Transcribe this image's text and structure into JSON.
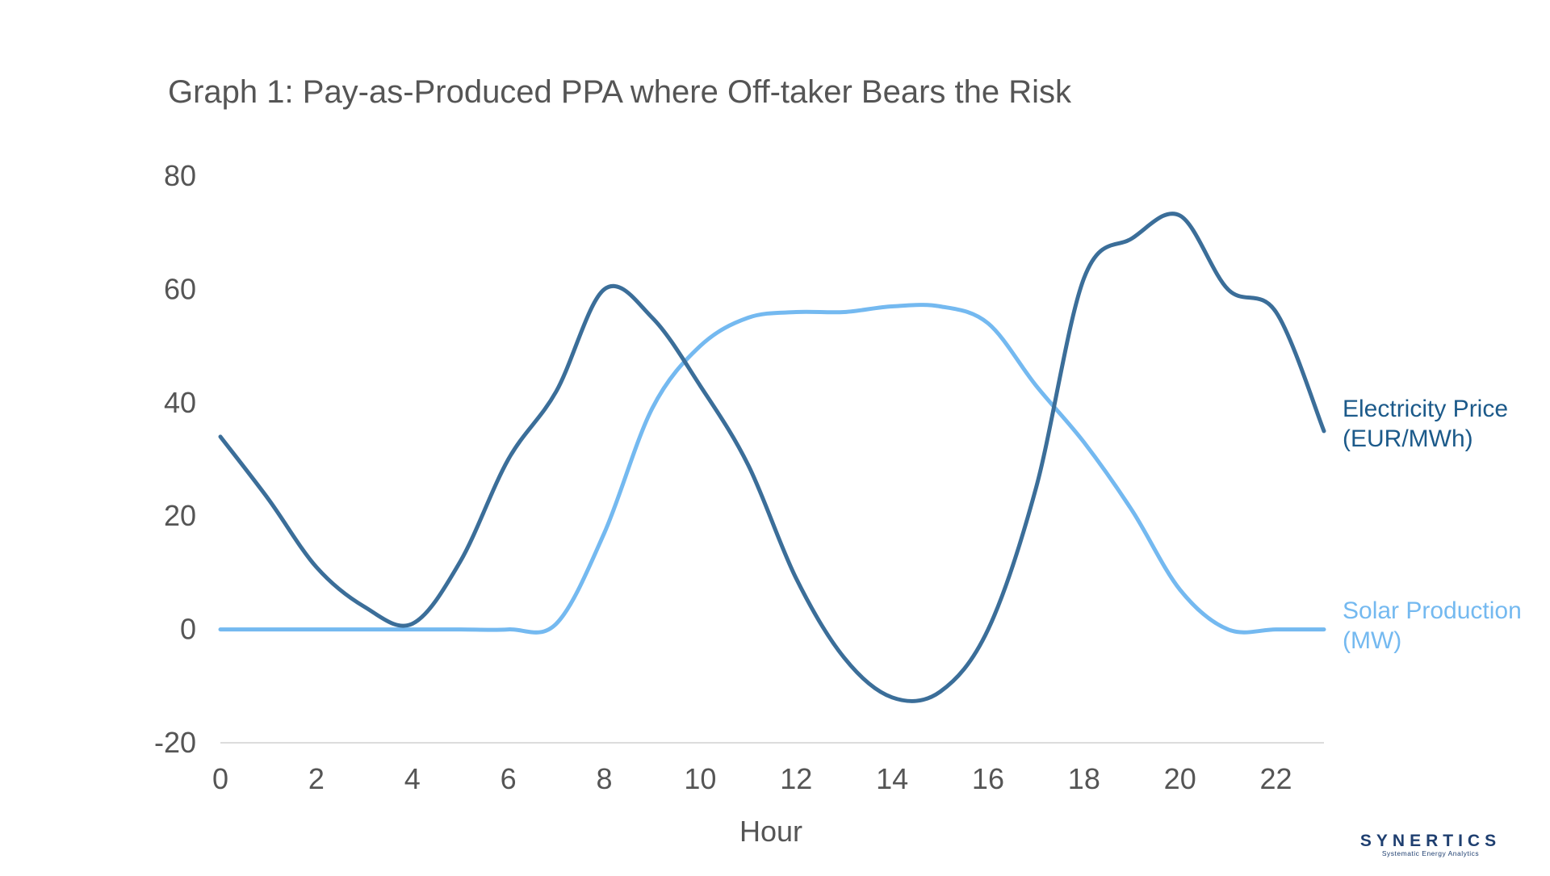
{
  "chart_data": {
    "type": "line",
    "title": "Graph 1: Pay-as-Produced PPA where Off-taker Bears the Risk",
    "xlabel": "Hour",
    "ylabel": "",
    "xlim": [
      0,
      23
    ],
    "ylim": [
      -20,
      80
    ],
    "x_ticks": [
      0,
      2,
      4,
      6,
      8,
      10,
      12,
      14,
      16,
      18,
      20,
      22
    ],
    "y_ticks": [
      80,
      60,
      40,
      20,
      0,
      -20
    ],
    "grid": false,
    "legend_placement": "right, beside line ends",
    "x": [
      0,
      1,
      2,
      3,
      4,
      5,
      6,
      7,
      8,
      9,
      10,
      11,
      12,
      13,
      14,
      15,
      16,
      17,
      18,
      19,
      20,
      21,
      22,
      23
    ],
    "series": [
      {
        "name": "Electricity Price (EUR/MWh)",
        "label_lines": [
          "Electricity Price",
          "(EUR/MWh)"
        ],
        "color": "#3b6e99",
        "label_color": "#1c5a8a",
        "values": [
          34,
          23,
          11,
          4,
          1,
          12,
          30,
          42,
          60,
          55,
          43,
          29,
          9,
          -5,
          -12,
          -11,
          0,
          25,
          62,
          69,
          73,
          60,
          56,
          35
        ]
      },
      {
        "name": "Solar Production (MW)",
        "label_lines": [
          "Solar Production",
          "(MW)"
        ],
        "color": "#74b9f0",
        "label_color": "#74b9f0",
        "values": [
          0,
          0,
          0,
          0,
          0,
          0,
          0,
          1,
          17,
          39,
          50,
          55,
          56,
          56,
          57,
          57,
          54,
          43,
          33,
          21,
          7,
          0,
          0,
          0
        ]
      }
    ]
  },
  "brand": {
    "name": "SYNERTICS",
    "tagline": "Systematic Energy Analytics",
    "color": "#1f3f70"
  }
}
